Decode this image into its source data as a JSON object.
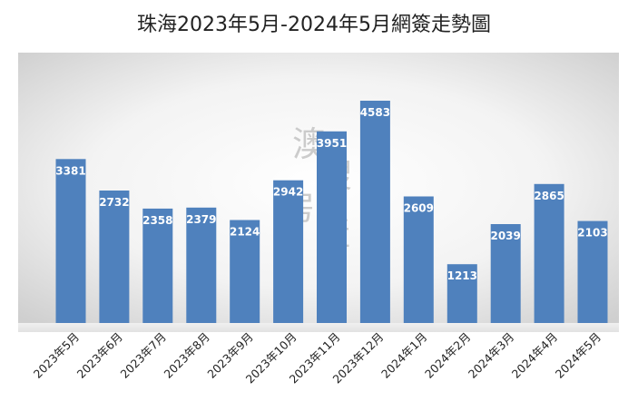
{
  "chart_data": {
    "type": "bar",
    "title": "珠海2023年5月-2024年5月網簽走勢圖",
    "xlabel": "",
    "ylabel": "",
    "categories": [
      "2023年5月",
      "2023年6月",
      "2023年7月",
      "2023年8月",
      "2023年9月",
      "2023年10月",
      "2023年11月",
      "2023年12月",
      "2024年1月",
      "2024年2月",
      "2024年3月",
      "2024年4月",
      "2024年5月"
    ],
    "values": [
      3381,
      2732,
      2358,
      2379,
      2124,
      2942,
      3951,
      4583,
      2609,
      1213,
      2039,
      2865,
      2103
    ],
    "ylim": [
      0,
      4900
    ],
    "grid": false,
    "legend": "none",
    "bar_color": "#4F81BD",
    "label_color": "#ffffff",
    "background": "light gray radial gradient"
  },
  "watermark": {
    "chars": [
      "澳",
      "搜",
      "房",
      "產"
    ],
    "color": "#b8b8b8"
  }
}
